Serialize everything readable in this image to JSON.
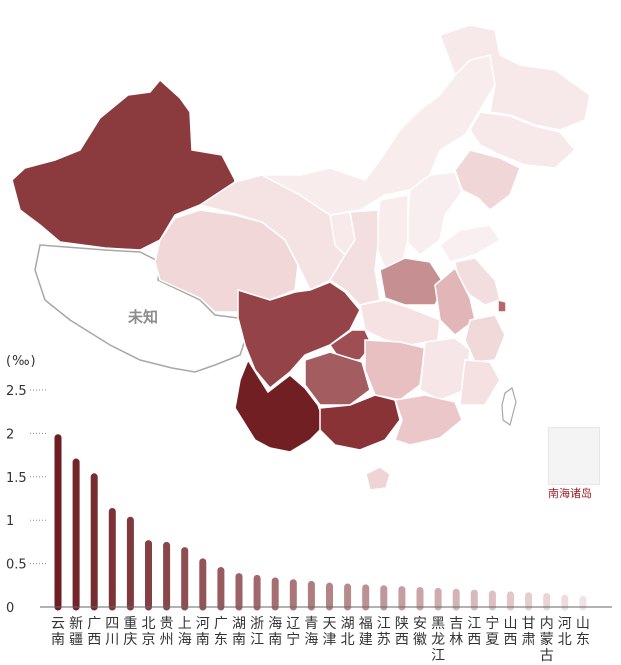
{
  "map": {
    "unknown_label": "未知",
    "inset_label": "南海诸岛",
    "colors": {
      "darkest": "#6e1e22",
      "dark": "#8b3a3e",
      "mid": "#a55a5e",
      "light": "#d9a7aa",
      "lighter": "#ecc9cb",
      "lightest": "#f8e9ea",
      "border": "#ffffff",
      "outline": "#a8a8a8"
    }
  },
  "chart_data": {
    "type": "bar",
    "unit_label": "(‰)",
    "y_ticks": [
      "0",
      "0.5",
      "1",
      "1.5",
      "2",
      "2.5"
    ],
    "ylim": [
      0,
      2.5
    ],
    "categories": [
      "云南",
      "新疆",
      "广西",
      "四川",
      "重庆",
      "北京",
      "贵州",
      "上海",
      "河南",
      "广东",
      "湖南",
      "浙江",
      "海南",
      "辽宁",
      "青海",
      "天津",
      "湖北",
      "福建",
      "江苏",
      "陕西",
      "安徽",
      "黑龙江",
      "吉林",
      "江西",
      "宁夏",
      "山西",
      "甘肃",
      "内蒙古",
      "河北",
      "山东"
    ],
    "values": [
      1.95,
      1.67,
      1.5,
      1.1,
      1.0,
      0.73,
      0.71,
      0.65,
      0.52,
      0.42,
      0.35,
      0.33,
      0.3,
      0.28,
      0.26,
      0.24,
      0.23,
      0.22,
      0.21,
      0.2,
      0.19,
      0.18,
      0.17,
      0.16,
      0.15,
      0.14,
      0.13,
      0.12,
      0.1,
      0.09
    ],
    "bar_color_start": "#6e1e22",
    "bar_color_end": "#f3e2e3",
    "grid": false
  }
}
